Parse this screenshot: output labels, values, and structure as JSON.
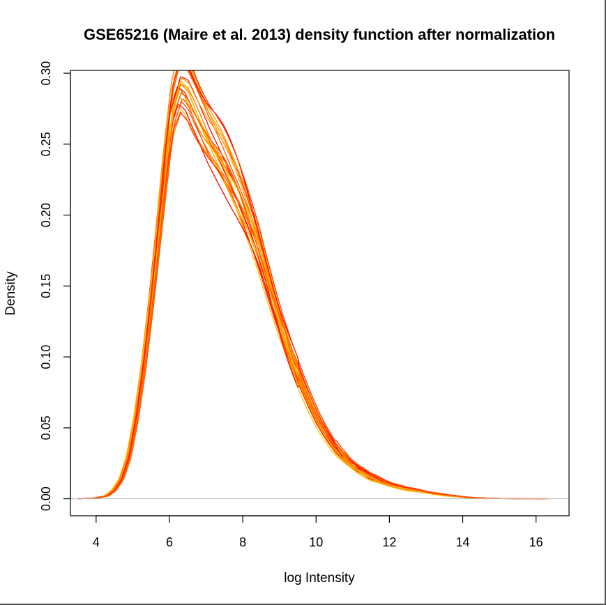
{
  "chart_data": {
    "type": "line",
    "title": "GSE65216 (Maire et al. 2013) density function after normalization",
    "xlabel": "log Intensity",
    "ylabel": "Density",
    "xlim": [
      3.3,
      16.9
    ],
    "ylim": [
      -0.012,
      0.302
    ],
    "xticks": [
      4,
      6,
      8,
      10,
      12,
      14,
      16
    ],
    "yticks": [
      0.0,
      0.05,
      0.1,
      0.15,
      0.2,
      0.25,
      0.3
    ],
    "xtick_labels": [
      "4",
      "6",
      "8",
      "10",
      "12",
      "14",
      "16"
    ],
    "ytick_labels": [
      "0.00",
      "0.05",
      "0.10",
      "0.15",
      "0.20",
      "0.25",
      "0.30"
    ],
    "baseline": 0,
    "baseline_color": "#bfbfbf",
    "legend": "none",
    "grid": false,
    "colors": [
      "#ff0000",
      "#ff3300",
      "#ff5500",
      "#ff7700",
      "#ff9900",
      "#ffaa00",
      "#ffc000"
    ],
    "representative_curve": {
      "x": [
        3.5,
        4.0,
        4.3,
        4.5,
        4.7,
        4.9,
        5.1,
        5.3,
        5.5,
        5.7,
        5.9,
        6.1,
        6.3,
        6.5,
        6.7,
        6.9,
        7.1,
        7.3,
        7.5,
        7.7,
        7.9,
        8.1,
        8.3,
        8.5,
        8.7,
        8.9,
        9.1,
        9.3,
        9.5,
        9.7,
        9.9,
        10.1,
        10.3,
        10.5,
        10.7,
        10.9,
        11.2,
        11.5,
        11.8,
        12.1,
        12.4,
        12.8,
        13.2,
        13.6,
        14.0,
        14.4,
        14.8,
        15.2,
        15.6,
        16.0,
        16.4
      ],
      "y": [
        0.0,
        0.0005,
        0.002,
        0.006,
        0.014,
        0.03,
        0.058,
        0.095,
        0.14,
        0.19,
        0.24,
        0.282,
        0.3,
        0.295,
        0.283,
        0.272,
        0.262,
        0.254,
        0.245,
        0.234,
        0.222,
        0.208,
        0.193,
        0.176,
        0.157,
        0.138,
        0.12,
        0.104,
        0.09,
        0.077,
        0.065,
        0.054,
        0.045,
        0.037,
        0.031,
        0.026,
        0.02,
        0.0155,
        0.012,
        0.0095,
        0.0075,
        0.0055,
        0.0038,
        0.0024,
        0.0013,
        0.0006,
        0.0003,
        0.0001,
        5e-05,
        2e-05,
        0.0
      ]
    },
    "series_count": 24
  }
}
